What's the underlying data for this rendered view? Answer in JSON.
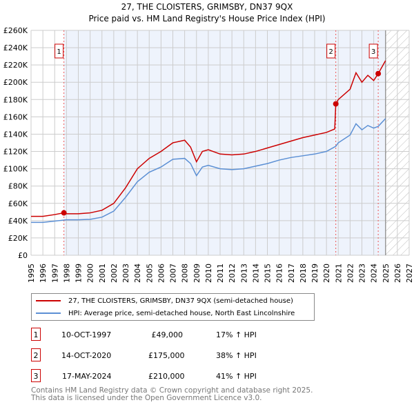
{
  "chart_data": {
    "type": "line",
    "title": "27, THE CLOISTERS, GRIMSBY, DN37 9QX",
    "subtitle": "Price paid vs. HM Land Registry's House Price Index (HPI)",
    "xlim": [
      1995,
      2027
    ],
    "ylim": [
      0,
      260000
    ],
    "yticks": [
      "£0",
      "£20K",
      "£40K",
      "£60K",
      "£80K",
      "£100K",
      "£120K",
      "£140K",
      "£160K",
      "£180K",
      "£200K",
      "£220K",
      "£240K",
      "£260K"
    ],
    "xticks": [
      "1995",
      "1996",
      "1997",
      "1998",
      "1999",
      "2000",
      "2001",
      "2002",
      "2003",
      "2004",
      "2005",
      "2006",
      "2007",
      "2008",
      "2009",
      "2010",
      "2011",
      "2012",
      "2013",
      "2014",
      "2015",
      "2016",
      "2017",
      "2018",
      "2019",
      "2020",
      "2021",
      "2022",
      "2023",
      "2024",
      "2025",
      "2026",
      "2027"
    ],
    "forecast_start": 2025,
    "series": [
      {
        "name": "27, THE CLOISTERS, GRIMSBY, DN37 9QX (semi-detached house)",
        "color": "#cc0000",
        "points": [
          [
            1995,
            45
          ],
          [
            1996,
            45
          ],
          [
            1997,
            47
          ],
          [
            1997.78,
            49
          ],
          [
            1998,
            48
          ],
          [
            1999,
            48
          ],
          [
            2000,
            49
          ],
          [
            2001,
            52
          ],
          [
            2002,
            60
          ],
          [
            2003,
            78
          ],
          [
            2004,
            100
          ],
          [
            2005,
            112
          ],
          [
            2006,
            120
          ],
          [
            2007,
            130
          ],
          [
            2008,
            133
          ],
          [
            2008.5,
            125
          ],
          [
            2009,
            108
          ],
          [
            2009.5,
            120
          ],
          [
            2010,
            122
          ],
          [
            2011,
            117
          ],
          [
            2012,
            116
          ],
          [
            2013,
            117
          ],
          [
            2014,
            120
          ],
          [
            2015,
            124
          ],
          [
            2016,
            128
          ],
          [
            2017,
            132
          ],
          [
            2018,
            136
          ],
          [
            2019,
            139
          ],
          [
            2020,
            142
          ],
          [
            2020.7,
            146
          ],
          [
            2020.79,
            175
          ],
          [
            2021,
            180
          ],
          [
            2022,
            192
          ],
          [
            2022.5,
            211
          ],
          [
            2023,
            200
          ],
          [
            2023.5,
            208
          ],
          [
            2024,
            202
          ],
          [
            2024.38,
            210
          ],
          [
            2025,
            225
          ]
        ]
      },
      {
        "name": "HPI: Average price, semi-detached house, North East Lincolnshire",
        "color": "#5b8fd4",
        "points": [
          [
            1995,
            38
          ],
          [
            1996,
            38
          ],
          [
            1997,
            39.5
          ],
          [
            1998,
            41
          ],
          [
            1999,
            41
          ],
          [
            2000,
            41.5
          ],
          [
            2001,
            44
          ],
          [
            2002,
            51
          ],
          [
            2003,
            67
          ],
          [
            2004,
            85
          ],
          [
            2005,
            96
          ],
          [
            2006,
            102
          ],
          [
            2007,
            111
          ],
          [
            2008,
            112
          ],
          [
            2008.5,
            106
          ],
          [
            2009,
            92
          ],
          [
            2009.5,
            102
          ],
          [
            2010,
            104
          ],
          [
            2011,
            100
          ],
          [
            2012,
            99
          ],
          [
            2013,
            100
          ],
          [
            2014,
            103
          ],
          [
            2015,
            106
          ],
          [
            2016,
            110
          ],
          [
            2017,
            113
          ],
          [
            2018,
            115
          ],
          [
            2019,
            117
          ],
          [
            2020,
            120
          ],
          [
            2020.79,
            126
          ],
          [
            2021,
            130
          ],
          [
            2022,
            139
          ],
          [
            2022.5,
            152
          ],
          [
            2023,
            145
          ],
          [
            2023.5,
            150
          ],
          [
            2024,
            147
          ],
          [
            2024.38,
            149
          ],
          [
            2025,
            158
          ]
        ]
      }
    ],
    "sales": [
      {
        "label": "1",
        "x": 1997.78,
        "price": 49
      },
      {
        "label": "2",
        "x": 2020.79,
        "price": 175
      },
      {
        "label": "3",
        "x": 2024.38,
        "price": 210
      }
    ]
  },
  "table": [
    {
      "num": "1",
      "date": "10-OCT-1997",
      "price": "£49,000",
      "hpi": "17% ↑ HPI"
    },
    {
      "num": "2",
      "date": "14-OCT-2020",
      "price": "£175,000",
      "hpi": "38% ↑ HPI"
    },
    {
      "num": "3",
      "date": "17-MAY-2024",
      "price": "£210,000",
      "hpi": "41% ↑ HPI"
    }
  ],
  "footer": {
    "line1": "Contains HM Land Registry data © Crown copyright and database right 2025.",
    "line2": "This data is licensed under the Open Government Licence v3.0."
  }
}
